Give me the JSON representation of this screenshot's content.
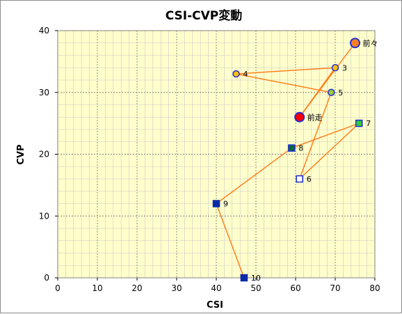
{
  "chart_data": {
    "type": "scatter",
    "title": "CSI-CVP変動",
    "xlabel": "CSI",
    "ylabel": "CVP",
    "xlim": [
      0,
      80
    ],
    "ylim": [
      0,
      40
    ],
    "xticks": [
      0,
      10,
      20,
      30,
      40,
      50,
      60,
      70,
      80
    ],
    "yticks": [
      0,
      10,
      20,
      30,
      40
    ],
    "grid": true,
    "minor_grid": true,
    "colors": {
      "plot_bg": "#ffffcc",
      "line": "#ff7f1e",
      "major_grid": "#808080",
      "minor_grid": "#c8c8c8"
    },
    "points": [
      {
        "label": "前々",
        "x": 75,
        "y": 38,
        "shape": "circle",
        "size": "large",
        "fill": "#ff7f27",
        "stroke": "#1f2dd6"
      },
      {
        "label": "前走",
        "x": 61,
        "y": 26,
        "shape": "circle",
        "size": "large",
        "fill": "#ff0000",
        "stroke": "#1f2dd6"
      },
      {
        "label": "3",
        "x": 70,
        "y": 34,
        "shape": "circle",
        "size": "small",
        "fill": "#ffc000",
        "stroke": "#1f2dd6"
      },
      {
        "label": "4",
        "x": 45,
        "y": 33,
        "shape": "circle",
        "size": "small",
        "fill": "#ffc000",
        "stroke": "#1f2dd6"
      },
      {
        "label": "5",
        "x": 69,
        "y": 30,
        "shape": "circle",
        "size": "small",
        "fill": "#99cc33",
        "stroke": "#1f2dd6"
      },
      {
        "label": "6",
        "x": 61,
        "y": 16,
        "shape": "square",
        "fill": "#ffffff",
        "stroke": "#1f2dd6"
      },
      {
        "label": "7",
        "x": 76,
        "y": 25,
        "shape": "square",
        "fill": "#33cc33",
        "stroke": "#1f2dd6"
      },
      {
        "label": "8",
        "x": 59,
        "y": 21,
        "shape": "square",
        "fill": "#0b6b2e",
        "stroke": "#1f2dd6"
      },
      {
        "label": "9",
        "x": 40,
        "y": 12,
        "shape": "square",
        "fill": "#0b2aa8",
        "stroke": "#0b2aa8"
      },
      {
        "label": "10",
        "x": 47,
        "y": 0,
        "shape": "square",
        "fill": "#0b2aa8",
        "stroke": "#0b2aa8"
      }
    ]
  }
}
